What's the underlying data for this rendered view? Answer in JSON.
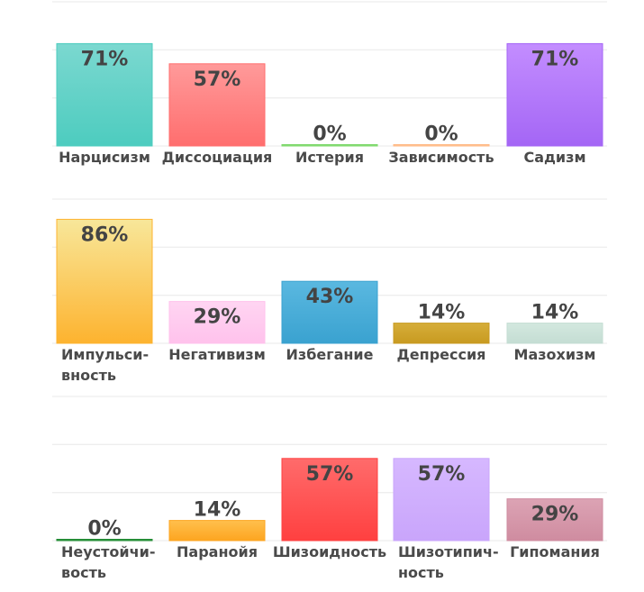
{
  "chart_data": [
    {
      "type": "bar",
      "ylim": [
        0,
        100
      ],
      "grid": true,
      "categories": [
        "Нарцисизм",
        "Диссоциация",
        "Истерия",
        "Зависимость",
        "Садизм"
      ],
      "values": [
        71,
        57,
        0,
        0,
        71
      ],
      "labels": [
        "71%",
        "57%",
        "0%",
        "0%",
        "71%"
      ],
      "colors": [
        [
          "#7bd8d0",
          "#4dccbf"
        ],
        [
          "#ff9a9a",
          "#ff6e6e"
        ],
        [
          "#9ee58a",
          "#7cd86a"
        ],
        [
          "#ffd2a8",
          "#ffb985"
        ],
        [
          "#c38dff",
          "#a466f5"
        ]
      ]
    },
    {
      "type": "bar",
      "ylim": [
        0,
        100
      ],
      "grid": true,
      "categories": [
        "Импульси-\nвность",
        "Негативизм",
        "Избегание",
        "Депрессия",
        "Мазохизм"
      ],
      "values": [
        86,
        29,
        43,
        14,
        14
      ],
      "labels": [
        "86%",
        "29%",
        "43%",
        "14%",
        "14%"
      ],
      "colors": [
        [
          "#f8e79a",
          "#fdb32f"
        ],
        [
          "#ffd5f2",
          "#ffc2ec"
        ],
        [
          "#5ab8e0",
          "#3aa2d0"
        ],
        [
          "#d6ae3a",
          "#c89a20"
        ],
        [
          "#d3e8df",
          "#c4ddd3"
        ]
      ]
    },
    {
      "type": "bar",
      "ylim": [
        0,
        100
      ],
      "grid": true,
      "categories": [
        "Неустойчи-\nвость",
        "Паранойя",
        "Шизоидность",
        "Шизотипич-\nность",
        "Гипомания"
      ],
      "values": [
        0,
        14,
        57,
        57,
        29
      ],
      "labels": [
        "0%",
        "14%",
        "57%",
        "57%",
        "29%"
      ],
      "colors": [
        [
          "#3aa84a",
          "#238b35"
        ],
        [
          "#ffc04d",
          "#fda520"
        ],
        [
          "#ff6b6b",
          "#ff4040"
        ],
        [
          "#d6b8ff",
          "#c9a5fb"
        ],
        [
          "#dca3b4",
          "#cf8ca0"
        ]
      ]
    }
  ]
}
